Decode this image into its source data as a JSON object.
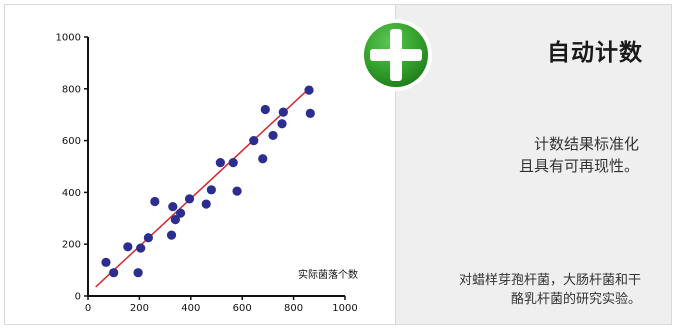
{
  "chart_data": {
    "type": "scatter",
    "title": "",
    "xlabel": "",
    "ylabel": "",
    "inline_label": "实际菌落个数",
    "xlim": [
      0,
      1000
    ],
    "ylim": [
      0,
      1000
    ],
    "x_ticks": [
      "0",
      "200",
      "400",
      "600",
      "800",
      "1000"
    ],
    "y_ticks": [
      "0",
      "200",
      "400",
      "600",
      "800",
      "1000"
    ],
    "x_tick_values": [
      0,
      200,
      400,
      600,
      800,
      1000
    ],
    "y_tick_values": [
      0,
      200,
      400,
      600,
      800,
      1000
    ],
    "grid": false,
    "point_color": "#2b2d8f",
    "line_color": "#d9262c",
    "points": [
      {
        "x": 70,
        "y": 130
      },
      {
        "x": 100,
        "y": 90
      },
      {
        "x": 155,
        "y": 190
      },
      {
        "x": 195,
        "y": 90
      },
      {
        "x": 205,
        "y": 185
      },
      {
        "x": 235,
        "y": 225
      },
      {
        "x": 260,
        "y": 365
      },
      {
        "x": 325,
        "y": 235
      },
      {
        "x": 330,
        "y": 345
      },
      {
        "x": 340,
        "y": 295
      },
      {
        "x": 360,
        "y": 320
      },
      {
        "x": 395,
        "y": 375
      },
      {
        "x": 460,
        "y": 355
      },
      {
        "x": 480,
        "y": 410
      },
      {
        "x": 515,
        "y": 515
      },
      {
        "x": 565,
        "y": 515
      },
      {
        "x": 580,
        "y": 405
      },
      {
        "x": 645,
        "y": 600
      },
      {
        "x": 680,
        "y": 530
      },
      {
        "x": 690,
        "y": 720
      },
      {
        "x": 720,
        "y": 620
      },
      {
        "x": 755,
        "y": 665
      },
      {
        "x": 760,
        "y": 710
      },
      {
        "x": 860,
        "y": 795
      },
      {
        "x": 865,
        "y": 705
      }
    ],
    "trend_line": {
      "x": [
        30,
        870
      ],
      "y": [
        35,
        810
      ]
    }
  },
  "info": {
    "title": "自动计数",
    "desc1_lines": [
      "计数结果标准化",
      "且具有可再现性。"
    ],
    "desc2_lines": [
      "对蜡样芽孢杆菌，大肠杆菌和干",
      "酪乳杆菌的研究实验。"
    ],
    "badge_icon": "plus-icon",
    "badge_color": "#3aa535"
  }
}
